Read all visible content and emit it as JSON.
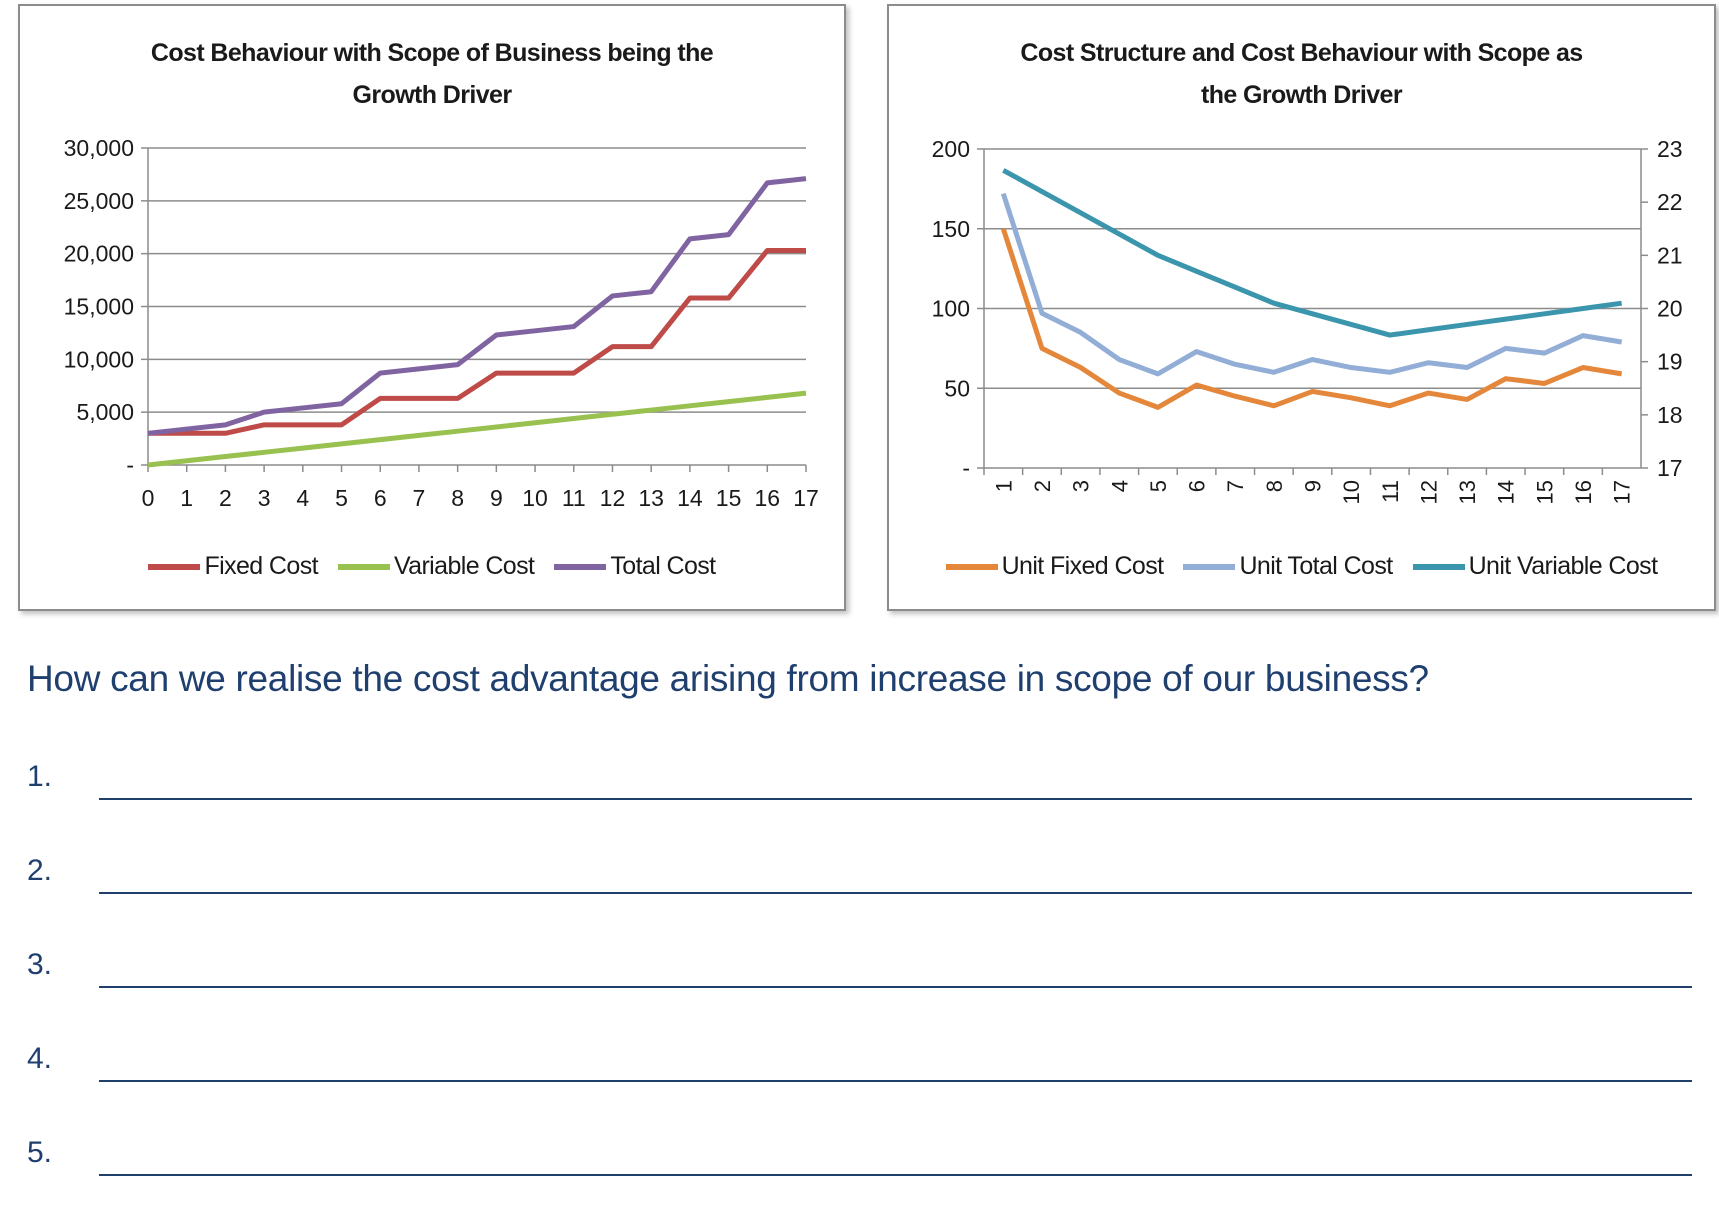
{
  "question": "How can we realise the cost advantage arising from increase in scope of our business?",
  "answers": [
    {
      "number": "1.",
      "value": ""
    },
    {
      "number": "2.",
      "value": ""
    },
    {
      "number": "3.",
      "value": ""
    },
    {
      "number": "4.",
      "value": ""
    },
    {
      "number": "5.",
      "value": ""
    }
  ],
  "chart_data": [
    {
      "type": "line",
      "title_lines": [
        "Cost Behaviour  with Scope of Business being the",
        "Growth Driver"
      ],
      "xlabel": "",
      "ylabel": "",
      "x": [
        0,
        1,
        2,
        3,
        4,
        5,
        6,
        7,
        8,
        9,
        10,
        11,
        12,
        13,
        14,
        15,
        16,
        17
      ],
      "ylim": [
        0,
        30000
      ],
      "yticks": [
        0,
        5000,
        10000,
        15000,
        20000,
        25000,
        30000
      ],
      "ytick_labels": [
        "-",
        "5,000",
        "10,000",
        "15,000",
        "20,000",
        "25,000",
        "30,000"
      ],
      "grid": true,
      "legend_position": "bottom",
      "series": [
        {
          "name": "Fixed Cost",
          "color": "#be4b48",
          "values": [
            3000,
            3000,
            3000,
            3800,
            3800,
            3800,
            6300,
            6300,
            6300,
            8700,
            8700,
            8700,
            11200,
            11200,
            15800,
            15800,
            20300,
            20300
          ]
        },
        {
          "name": "Variable Cost",
          "color": "#98c150",
          "values": [
            0,
            400,
            800,
            1200,
            1600,
            2000,
            2400,
            2800,
            3200,
            3600,
            4000,
            4400,
            4800,
            5200,
            5600,
            6000,
            6400,
            6800
          ]
        },
        {
          "name": "Total Cost",
          "color": "#8064a2",
          "values": [
            3000,
            3400,
            3800,
            5000,
            5400,
            5800,
            8700,
            9100,
            9500,
            12300,
            12700,
            13100,
            16000,
            16400,
            21400,
            21800,
            26700,
            27100
          ]
        }
      ]
    },
    {
      "type": "line",
      "title_lines": [
        "Cost Structure and Cost Behaviour with  Scope as",
        "the Growth Driver"
      ],
      "xlabel": "",
      "ylabel": "",
      "x": [
        1,
        2,
        3,
        4,
        5,
        6,
        7,
        8,
        9,
        10,
        11,
        12,
        13,
        14,
        15,
        16,
        17
      ],
      "ylim": [
        0,
        200
      ],
      "yticks": [
        0,
        50,
        100,
        150,
        200
      ],
      "ytick_labels": [
        "-",
        "50",
        "100",
        "150",
        "200"
      ],
      "y2lim": [
        17,
        23
      ],
      "y2ticks": [
        17,
        18,
        19,
        20,
        21,
        22,
        23
      ],
      "y2tick_labels": [
        "17",
        "18",
        "19",
        "20",
        "21",
        "22",
        "23"
      ],
      "grid": true,
      "legend_position": "bottom",
      "series": [
        {
          "name": "Unit Fixed Cost",
          "color": "#e4873b",
          "axis": "left",
          "values": [
            150,
            75,
            63,
            47,
            38,
            52,
            45,
            39,
            48,
            44,
            39,
            47,
            43,
            56,
            53,
            63,
            59
          ]
        },
        {
          "name": "Unit Total Cost",
          "color": "#93aed6",
          "axis": "left",
          "values": [
            172,
            97,
            85,
            68,
            59,
            73,
            65,
            60,
            68,
            63,
            60,
            66,
            63,
            75,
            72,
            83,
            79
          ]
        },
        {
          "name": "Unit Variable Cost",
          "color": "#3b96ad",
          "axis": "right",
          "values": [
            22.6,
            22.2,
            21.8,
            21.4,
            21.0,
            20.7,
            20.4,
            20.1,
            19.9,
            19.7,
            19.5,
            19.6,
            19.7,
            19.8,
            19.9,
            20.0,
            20.1
          ]
        }
      ]
    }
  ]
}
